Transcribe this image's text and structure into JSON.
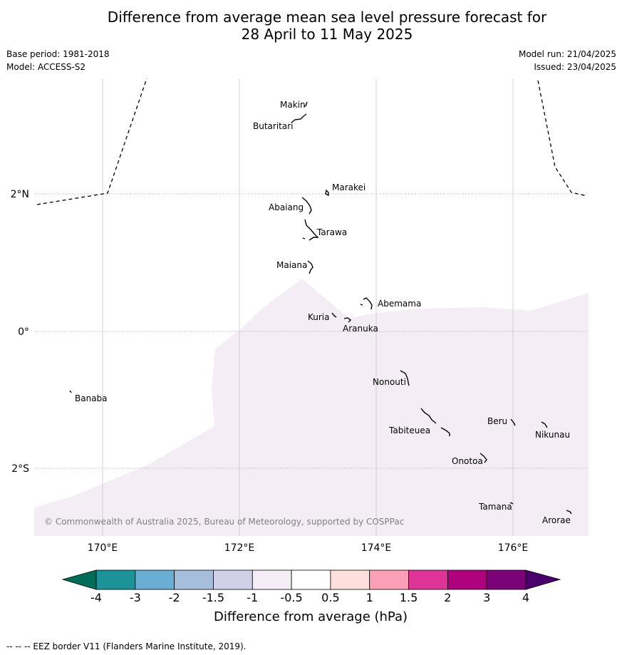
{
  "title": {
    "line1": "Difference from average mean sea level pressure forecast for",
    "line2": "28 April to 11 May 2025"
  },
  "meta": {
    "base_period": "Base period: 1981-2018",
    "model": "Model: ACCESS-S2",
    "model_run": "Model run: 21/04/2025",
    "issued": "Issued: 23/04/2025"
  },
  "axes": {
    "lon_labels": [
      "170°E",
      "172°E",
      "174°E",
      "176°E"
    ],
    "lat_labels": [
      "2°N",
      "0°",
      "2°S"
    ]
  },
  "places": [
    {
      "name": "Makin"
    },
    {
      "name": "Butaritari"
    },
    {
      "name": "Marakei"
    },
    {
      "name": "Abaiang"
    },
    {
      "name": "Tarawa"
    },
    {
      "name": "Maiana"
    },
    {
      "name": "Abemama"
    },
    {
      "name": "Kuria"
    },
    {
      "name": "Aranuka"
    },
    {
      "name": "Nonouti"
    },
    {
      "name": "Banaba"
    },
    {
      "name": "Beru"
    },
    {
      "name": "Tabiteuea"
    },
    {
      "name": "Nikunau"
    },
    {
      "name": "Onotoa"
    },
    {
      "name": "Tamana"
    },
    {
      "name": "Arorae"
    }
  ],
  "shaded_region": {
    "class": "-1 to -0.5",
    "color": "#f4edf5"
  },
  "copyright": "© Commonwealth of Australia 2025, Bureau of Meteorology, supported by COSPPac",
  "colorbar": {
    "title": "Difference from average (hPa)",
    "ticks": [
      "-4",
      "-3",
      "-2",
      "-1.5",
      "-1",
      "-0.5",
      "0.5",
      "1",
      "1.5",
      "2",
      "3",
      "4"
    ],
    "colors": [
      "#1b9399",
      "#6aaed6",
      "#a6bddb",
      "#d0d1e6",
      "#f4edf5",
      "#ffffff",
      "#fde0dd",
      "#fa9fb5",
      "#dd3497",
      "#ae017e",
      "#7a0177"
    ],
    "under_color": "#016c59",
    "over_color": "#49006a"
  },
  "footer": "--  --  -- EEZ border V11 (Flanders Marine Institute, 2019)."
}
